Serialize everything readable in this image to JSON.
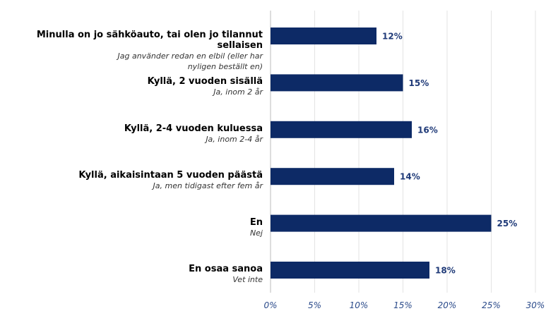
{
  "chart_data": {
    "type": "bar",
    "orientation": "horizontal",
    "categories": [
      "Minulla on jo sähköauto, tai olen jo tilannut sellaisen",
      "Kyllä, 2 vuoden sisällä",
      "Kyllä, 2-4 vuoden kuluessa",
      "Kyllä, aikaisintaan 5 vuoden päästä",
      "En",
      "En osaa sanoa"
    ],
    "category_translations": [
      "Jag använder redan en elbil (eller har nyligen beställt en)",
      "Ja, inom 2 år",
      "Ja, inom 2-4 år",
      "Ja, men tidigast efter fem år",
      "Nej",
      "Vet inte"
    ],
    "values": [
      12,
      15,
      16,
      14,
      25,
      18
    ],
    "value_labels": [
      "12%",
      "15%",
      "16%",
      "14%",
      "25%",
      "18%"
    ],
    "color": "#0d2a66",
    "xlim": [
      0,
      30
    ],
    "xticks": [
      {
        "value": 0,
        "label": "0%"
      },
      {
        "value": 5,
        "label": "5%"
      },
      {
        "value": 10,
        "label": "10%"
      },
      {
        "value": 15,
        "label": "15%"
      },
      {
        "value": 20,
        "label": "20%"
      },
      {
        "value": 25,
        "label": "25%"
      },
      {
        "value": 30,
        "label": "30%"
      }
    ],
    "grid": true
  }
}
